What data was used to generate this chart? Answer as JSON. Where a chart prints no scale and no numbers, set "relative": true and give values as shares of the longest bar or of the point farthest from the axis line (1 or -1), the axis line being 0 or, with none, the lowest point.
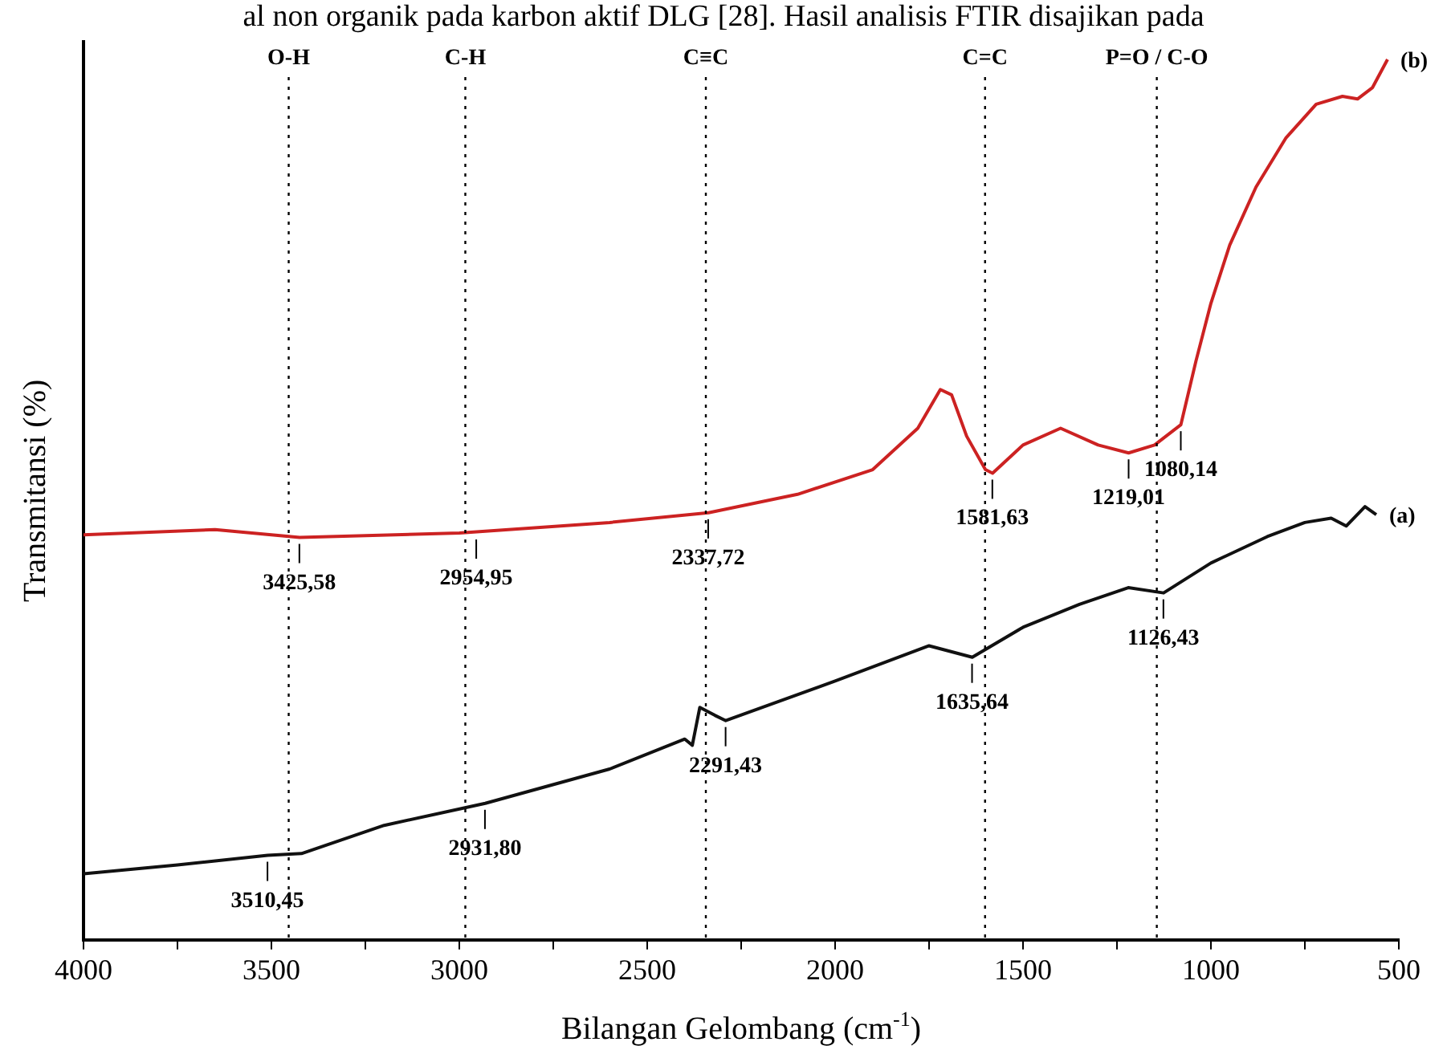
{
  "chart_data": {
    "type": "line",
    "relative": true,
    "xlabel": "Bilangan Gelombang (cm$^{-1}$)",
    "ylabel": "Transmitansi (%)",
    "xlim": [
      4000,
      500
    ],
    "xticks": [
      4000,
      {
        "value": 3750,
        "label": null
      },
      3500,
      {
        "value": 3250,
        "label": null
      },
      3000,
      {
        "value": 2750,
        "label": null
      },
      2500,
      {
        "value": 2250,
        "label": null
      },
      2000,
      {
        "value": 1750,
        "label": null
      },
      1500,
      {
        "value": 1250,
        "label": null
      },
      1000,
      {
        "value": 750,
        "label": null
      },
      500
    ],
    "grid": false,
    "legend": false,
    "marker": "none",
    "line_style": "solid",
    "series": [
      {
        "name": "(b)",
        "color": "#cc2222",
        "x": [
          4000,
          3650,
          3425,
          3000,
          2600,
          2337,
          2100,
          1900,
          1780,
          1720,
          1690,
          1650,
          1600,
          1581,
          1500,
          1400,
          1300,
          1219,
          1150,
          1080,
          1040,
          1000,
          950,
          880,
          800,
          720,
          650,
          610,
          570,
          530
        ],
        "values": [
          0.46,
          0.466,
          0.457,
          0.462,
          0.474,
          0.485,
          0.506,
          0.534,
          0.581,
          0.625,
          0.619,
          0.572,
          0.534,
          0.53,
          0.562,
          0.581,
          0.562,
          0.553,
          0.562,
          0.585,
          0.657,
          0.723,
          0.789,
          0.855,
          0.911,
          0.949,
          0.958,
          0.955,
          0.968,
          1.0
        ]
      },
      {
        "name": "(a)",
        "color": "#111111",
        "x": [
          4000,
          3750,
          3510,
          3420,
          3200,
          2931,
          2600,
          2400,
          2380,
          2360,
          2320,
          2291,
          2000,
          1750,
          1635,
          1500,
          1350,
          1220,
          1126,
          1000,
          850,
          750,
          680,
          640,
          590,
          560
        ],
        "values": [
          0.075,
          0.085,
          0.096,
          0.098,
          0.13,
          0.155,
          0.194,
          0.228,
          0.221,
          0.264,
          0.255,
          0.249,
          0.294,
          0.334,
          0.321,
          0.355,
          0.381,
          0.4,
          0.394,
          0.428,
          0.458,
          0.474,
          0.479,
          0.47,
          0.492,
          0.483
        ]
      }
    ],
    "ref_lines": [
      {
        "axis": "x",
        "value": 3454,
        "label": "O-H",
        "line_style": "dotted"
      },
      {
        "axis": "x",
        "value": 2984,
        "label": "C-H",
        "line_style": "dotted"
      },
      {
        "axis": "x",
        "value": 2344,
        "label": "C≡C",
        "line_style": "dotted"
      },
      {
        "axis": "x",
        "value": 1601,
        "label": "C=C",
        "line_style": "dotted"
      },
      {
        "axis": "x",
        "value": 1144,
        "label": "P=O / C-O",
        "line_style": "dotted"
      }
    ],
    "annotations": [
      "al non organik pada karbon aktif DLG [28]. Hasil analisis FTIR disajikan pada",
      {
        "text": "3425,58",
        "x": 3425.58,
        "y": 0.457
      },
      {
        "text": "2954,95",
        "x": 2954.95,
        "y": 0.462
      },
      {
        "text": "2337,72",
        "x": 2337.72,
        "y": 0.485
      },
      {
        "text": "1581,63",
        "x": 1581.63,
        "y": 0.53
      },
      {
        "text": "1219,01",
        "x": 1219.01,
        "y": 0.553
      },
      {
        "text": "1080,14",
        "x": 1080.14,
        "y": 0.585
      },
      {
        "text": "3510,45",
        "x": 3510.45,
        "y": 0.096
      },
      {
        "text": "2931,80",
        "x": 2931.8,
        "y": 0.155
      },
      {
        "text": "2291,43",
        "x": 2291.43,
        "y": 0.249
      },
      {
        "text": "1635,64",
        "x": 1635.64,
        "y": 0.321
      },
      {
        "text": "1126,43",
        "x": 1126.43,
        "y": 0.394
      }
    ]
  }
}
